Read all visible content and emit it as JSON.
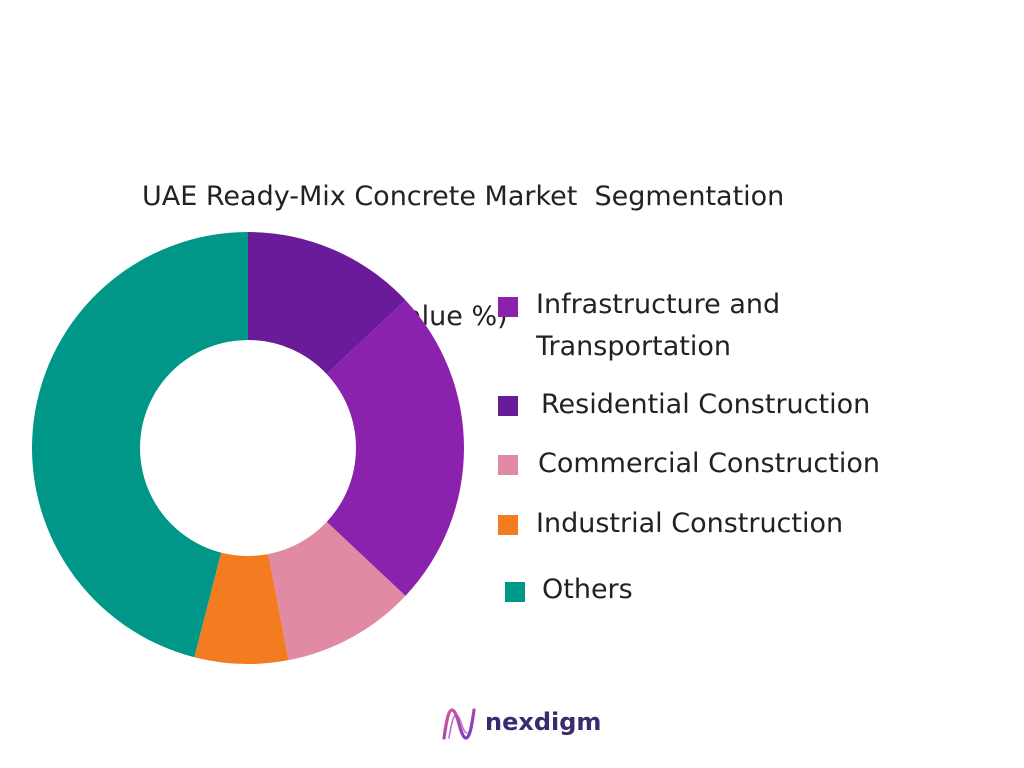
{
  "chart_data": {
    "type": "pie",
    "title": "UAE Ready-Mix Concrete Market  Segmentation\nBy Application (In Value %)",
    "title_lines": [
      "UAE Ready-Mix Concrete Market  Segmentation",
      "By Application (In Value %)"
    ],
    "donut": true,
    "legend_position": "right",
    "categories": [
      "Infrastructure and Transportation",
      "Residential Construction",
      "Commercial Construction",
      "Industrial Construction",
      "Others"
    ],
    "legend_labels": [
      [
        "Infrastructure and",
        "Transportation"
      ],
      [
        "Residential Construction"
      ],
      [
        "Commercial Construction"
      ],
      [
        "Industrial Construction"
      ],
      [
        "Others"
      ]
    ],
    "values": [
      24,
      13,
      10,
      7,
      46
    ],
    "colors": [
      "#8b22ae",
      "#6a1b9a",
      "#e08aa3",
      "#f47c20",
      "#009688"
    ],
    "slice_order": [
      1,
      0,
      2,
      3,
      4
    ]
  },
  "brand": {
    "name": "nexdigm",
    "icon": "nexdigm-logo-icon",
    "color": "#3a2a6e"
  }
}
